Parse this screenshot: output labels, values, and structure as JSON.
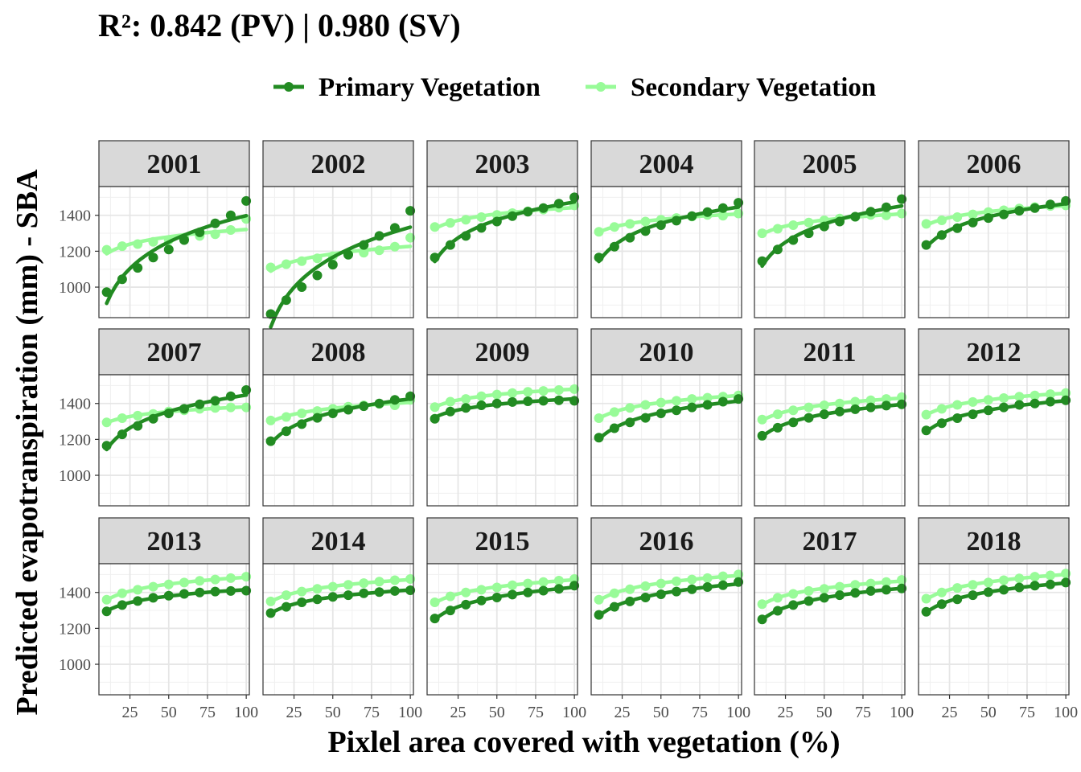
{
  "chart_data": {
    "type": "scatter",
    "title": "R²: 0.842 (PV) | 0.980 (SV)",
    "xlabel": "Pixlel area covered with vegetation (%)",
    "ylabel": "Predicted evapotranspiration (mm) - SBA",
    "xlim": [
      5,
      102
    ],
    "ylim": [
      830,
      1560
    ],
    "x_ticks": [
      25,
      50,
      75,
      100
    ],
    "y_ticks": [
      1000,
      1200,
      1400
    ],
    "grid": true,
    "legend_position": "top",
    "series_names": [
      "Primary Vegetation",
      "Secondary Vegetation"
    ],
    "colors": {
      "primary": "#228b22",
      "secondary": "#98fb98"
    },
    "x": [
      10,
      20,
      30,
      40,
      50,
      60,
      70,
      80,
      90,
      100
    ],
    "panels": [
      {
        "label": "2001",
        "primary": [
          972,
          1044,
          1107,
          1165,
          1210,
          1262,
          1305,
          1355,
          1400,
          1480
        ],
        "secondary": [
          1208,
          1228,
          1240,
          1252,
          1262,
          1275,
          1285,
          1295,
          1318,
          1380
        ]
      },
      {
        "label": "2002",
        "primary": [
          850,
          928,
          1000,
          1065,
          1125,
          1180,
          1235,
          1285,
          1330,
          1425
        ],
        "secondary": [
          1110,
          1128,
          1145,
          1160,
          1172,
          1182,
          1192,
          1205,
          1225,
          1275
        ]
      },
      {
        "label": "2003",
        "primary": [
          1165,
          1235,
          1285,
          1330,
          1365,
          1395,
          1420,
          1440,
          1465,
          1500
        ],
        "secondary": [
          1335,
          1358,
          1375,
          1390,
          1402,
          1412,
          1422,
          1432,
          1442,
          1455
        ]
      },
      {
        "label": "2004",
        "primary": [
          1165,
          1225,
          1275,
          1312,
          1345,
          1370,
          1395,
          1418,
          1440,
          1470
        ],
        "secondary": [
          1308,
          1335,
          1352,
          1365,
          1375,
          1385,
          1393,
          1402,
          1398,
          1410
        ]
      },
      {
        "label": "2005",
        "primary": [
          1145,
          1210,
          1262,
          1300,
          1338,
          1365,
          1392,
          1420,
          1445,
          1490
        ],
        "secondary": [
          1300,
          1325,
          1345,
          1360,
          1372,
          1382,
          1392,
          1402,
          1400,
          1410
        ]
      },
      {
        "label": "2006",
        "primary": [
          1235,
          1290,
          1328,
          1360,
          1385,
          1405,
          1425,
          1440,
          1460,
          1480
        ],
        "secondary": [
          1352,
          1372,
          1390,
          1405,
          1418,
          1428,
          1438,
          1446,
          1452,
          1455
        ]
      },
      {
        "label": "2007",
        "primary": [
          1165,
          1228,
          1275,
          1315,
          1345,
          1370,
          1395,
          1415,
          1440,
          1475
        ],
        "secondary": [
          1295,
          1318,
          1332,
          1342,
          1355,
          1362,
          1370,
          1375,
          1378,
          1378
        ]
      },
      {
        "label": "2008",
        "primary": [
          1190,
          1245,
          1285,
          1320,
          1345,
          1365,
          1385,
          1400,
          1420,
          1440
        ],
        "secondary": [
          1305,
          1325,
          1345,
          1358,
          1370,
          1382,
          1390,
          1398,
          1390,
          1420
        ]
      },
      {
        "label": "2009",
        "primary": [
          1315,
          1355,
          1375,
          1390,
          1400,
          1408,
          1412,
          1415,
          1418,
          1415
        ],
        "secondary": [
          1380,
          1410,
          1425,
          1440,
          1450,
          1458,
          1465,
          1470,
          1475,
          1480
        ]
      },
      {
        "label": "2010",
        "primary": [
          1210,
          1262,
          1295,
          1320,
          1345,
          1362,
          1378,
          1392,
          1410,
          1425
        ],
        "secondary": [
          1318,
          1352,
          1375,
          1392,
          1405,
          1415,
          1425,
          1432,
          1438,
          1445
        ]
      },
      {
        "label": "2011",
        "primary": [
          1220,
          1265,
          1295,
          1320,
          1340,
          1355,
          1368,
          1378,
          1388,
          1395
        ],
        "secondary": [
          1310,
          1340,
          1362,
          1378,
          1390,
          1400,
          1410,
          1418,
          1425,
          1435
        ]
      },
      {
        "label": "2012",
        "primary": [
          1250,
          1290,
          1318,
          1340,
          1362,
          1378,
          1392,
          1400,
          1410,
          1418
        ],
        "secondary": [
          1338,
          1370,
          1392,
          1408,
          1420,
          1430,
          1438,
          1445,
          1452,
          1458
        ]
      },
      {
        "label": "2013",
        "primary": [
          1295,
          1330,
          1352,
          1370,
          1382,
          1392,
          1400,
          1405,
          1408,
          1410
        ],
        "secondary": [
          1360,
          1395,
          1415,
          1432,
          1445,
          1455,
          1465,
          1472,
          1480,
          1488
        ]
      },
      {
        "label": "2014",
        "primary": [
          1285,
          1320,
          1345,
          1362,
          1375,
          1385,
          1395,
          1402,
          1408,
          1412
        ],
        "secondary": [
          1350,
          1385,
          1405,
          1420,
          1432,
          1442,
          1452,
          1460,
          1468,
          1475
        ]
      },
      {
        "label": "2015",
        "primary": [
          1255,
          1300,
          1332,
          1355,
          1372,
          1388,
          1400,
          1410,
          1420,
          1438
        ],
        "secondary": [
          1345,
          1378,
          1400,
          1415,
          1428,
          1440,
          1450,
          1458,
          1466,
          1475
        ]
      },
      {
        "label": "2016",
        "primary": [
          1275,
          1320,
          1350,
          1372,
          1390,
          1405,
          1418,
          1430,
          1440,
          1458
        ],
        "secondary": [
          1360,
          1395,
          1418,
          1435,
          1450,
          1462,
          1472,
          1480,
          1490,
          1500
        ]
      },
      {
        "label": "2017",
        "primary": [
          1250,
          1298,
          1330,
          1352,
          1370,
          1385,
          1398,
          1408,
          1415,
          1422
        ],
        "secondary": [
          1335,
          1370,
          1392,
          1408,
          1420,
          1432,
          1442,
          1450,
          1458,
          1470
        ]
      },
      {
        "label": "2018",
        "primary": [
          1292,
          1335,
          1362,
          1385,
          1402,
          1415,
          1428,
          1438,
          1445,
          1455
        ],
        "secondary": [
          1365,
          1400,
          1425,
          1442,
          1455,
          1468,
          1478,
          1488,
          1495,
          1505
        ]
      }
    ]
  }
}
